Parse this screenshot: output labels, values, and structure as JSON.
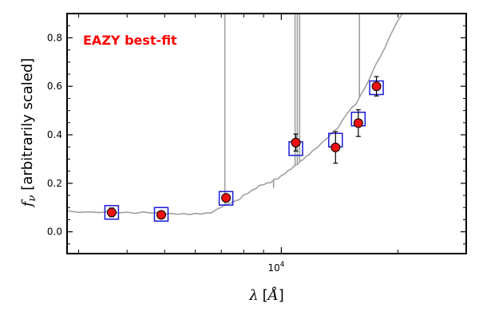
{
  "chart_data": {
    "type": "scatter",
    "title": "",
    "annotation": "EAZY best-fit",
    "annotation_color": "#ff0000",
    "xlabel": "λ [Å]",
    "ylabel": "f_ν [arbitrarily scaled]",
    "xscale": "log",
    "xlim": [
      2800,
      30000
    ],
    "ylim": [
      -0.09,
      0.9
    ],
    "yticks": [
      0.0,
      0.2,
      0.4,
      0.6,
      0.8
    ],
    "ytick_labels": [
      "0.0",
      "0.2",
      "0.4",
      "0.6",
      "0.8"
    ],
    "xtick_label": "10^4",
    "grid": false,
    "legend": "none",
    "colors": {
      "template": "#a0a0a0",
      "model_box": "#1a1ad6",
      "observed": "#ee1111",
      "errorbar": "#000000"
    },
    "template_sed": {
      "name": "",
      "x": [
        2800,
        3000,
        3200,
        3400,
        3600,
        3800,
        4000,
        4200,
        4400,
        4600,
        4800,
        5000,
        5200,
        5400,
        5600,
        5800,
        6000,
        6200,
        6400,
        6600,
        6800,
        7000,
        7200,
        7400,
        7600,
        7800,
        8000,
        8200,
        8400,
        8600,
        8800,
        9000,
        9200,
        9400,
        9600,
        9800,
        10000,
        10200,
        10400,
        10600,
        10800,
        11000,
        11200,
        11400,
        11600,
        11800,
        12000,
        12400,
        12800,
        13200,
        13600,
        14000,
        14400,
        14800,
        15200,
        15600,
        16000,
        16500,
        17000,
        17500,
        18000,
        18500,
        19000,
        19500,
        20000,
        20500
      ],
      "y": [
        0.085,
        0.082,
        0.08,
        0.081,
        0.082,
        0.08,
        0.079,
        0.078,
        0.08,
        0.079,
        0.077,
        0.075,
        0.074,
        0.074,
        0.073,
        0.073,
        0.074,
        0.075,
        0.076,
        0.08,
        0.09,
        0.103,
        0.112,
        0.12,
        0.125,
        0.135,
        0.15,
        0.16,
        0.17,
        0.18,
        0.19,
        0.196,
        0.2,
        0.205,
        0.215,
        0.22,
        0.23,
        0.24,
        0.25,
        0.26,
        0.27,
        0.28,
        0.29,
        0.3,
        0.31,
        0.32,
        0.33,
        0.35,
        0.37,
        0.39,
        0.41,
        0.43,
        0.46,
        0.49,
        0.51,
        0.53,
        0.56,
        0.6,
        0.64,
        0.69,
        0.72,
        0.76,
        0.8,
        0.84,
        0.87,
        0.9
      ]
    },
    "emission_lines": [
      {
        "x": 7150,
        "y": 0.9
      },
      {
        "x": 9550,
        "y": 0.18
      },
      {
        "x": 10850,
        "y": 0.9
      },
      {
        "x": 11000,
        "y": 0.9
      },
      {
        "x": 11150,
        "y": 0.9
      },
      {
        "x": 15900,
        "y": 0.9
      }
    ],
    "model_fluxes": {
      "name": "",
      "x": [
        3650,
        4900,
        7200,
        10900,
        13800,
        15800,
        17600
      ],
      "y": [
        0.08,
        0.072,
        0.138,
        0.343,
        0.378,
        0.465,
        0.594
      ]
    },
    "observed_fluxes": {
      "name": "",
      "x": [
        3650,
        4900,
        7200,
        10900,
        13800,
        15800,
        17600
      ],
      "y": [
        0.08,
        0.07,
        0.14,
        0.368,
        0.348,
        0.448,
        0.6
      ],
      "yerr": [
        0.018,
        0.008,
        0.008,
        0.035,
        0.065,
        0.055,
        0.04
      ]
    }
  }
}
